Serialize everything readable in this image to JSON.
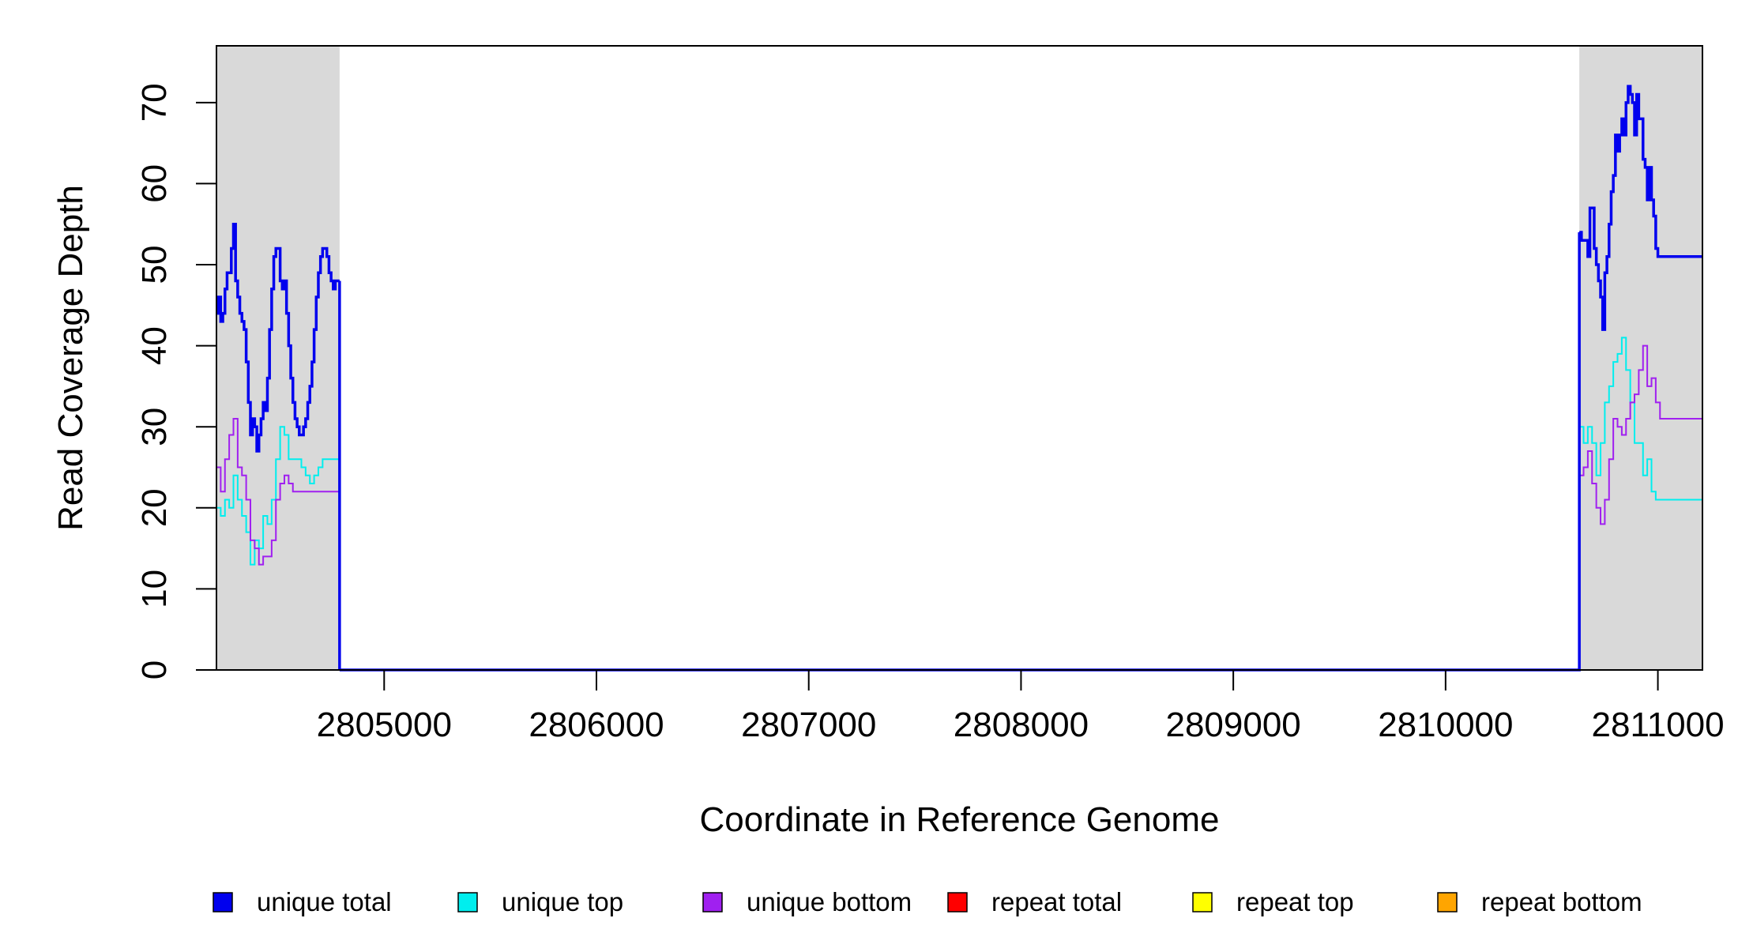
{
  "chart_data": {
    "type": "line",
    "title": "",
    "xlabel": "Coordinate in Reference Genome",
    "ylabel": "Read Coverage Depth",
    "xlim": [
      2804210,
      2811210
    ],
    "ylim": [
      0,
      77
    ],
    "x_ticks": [
      2805000,
      2806000,
      2807000,
      2808000,
      2809000,
      2810000,
      2811000
    ],
    "x_tick_labels": [
      "2805000",
      "2806000",
      "2807000",
      "2808000",
      "2809000",
      "2810000",
      "2811000"
    ],
    "y_ticks": [
      0,
      10,
      20,
      30,
      40,
      50,
      60,
      70
    ],
    "y_tick_labels": [
      "0",
      "10",
      "20",
      "30",
      "40",
      "50",
      "60",
      "70"
    ],
    "shaded_regions": [
      {
        "x_start": 2804210,
        "x_end": 2804790,
        "color": "#d9d9d9"
      },
      {
        "x_start": 2810630,
        "x_end": 2811210,
        "color": "#d9d9d9"
      }
    ],
    "legend_position": "bottom",
    "series": [
      {
        "name": "unique total",
        "color": "#0000ee",
        "segments": [
          {
            "x": [
              2804210,
              2804220,
              2804230,
              2804240,
              2804250,
              2804260,
              2804270,
              2804280,
              2804290,
              2804300,
              2804310,
              2804320,
              2804330,
              2804340,
              2804350,
              2804360,
              2804370,
              2804380,
              2804390,
              2804400,
              2804410,
              2804420,
              2804430,
              2804440,
              2804450,
              2804460,
              2804470,
              2804480,
              2804490,
              2804500,
              2804510,
              2804520,
              2804530,
              2804540,
              2804550,
              2804560,
              2804570,
              2804580,
              2804590,
              2804600,
              2804610,
              2804620,
              2804630,
              2804640,
              2804650,
              2804660,
              2804670,
              2804680,
              2804690,
              2804700,
              2804710,
              2804720,
              2804730,
              2804740,
              2804750,
              2804760,
              2804770,
              2804780,
              2804790
            ],
            "y": [
              44,
              46,
              43,
              44,
              47,
              49,
              49,
              52,
              55,
              48,
              46,
              44,
              43,
              42,
              38,
              33,
              29,
              31,
              30,
              27,
              29,
              31,
              33,
              32,
              36,
              42,
              47,
              51,
              52,
              52,
              48,
              47,
              48,
              44,
              40,
              36,
              33,
              31,
              30,
              29,
              29,
              30,
              31,
              33,
              35,
              38,
              42,
              46,
              49,
              51,
              52,
              52,
              51,
              49,
              48,
              47,
              48,
              48,
              48
            ]
          },
          {
            "x": [
              2810630,
              2810640,
              2810650,
              2810660,
              2810670,
              2810680,
              2810690,
              2810700,
              2810710,
              2810720,
              2810730,
              2810740,
              2810750,
              2810760,
              2810770,
              2810780,
              2810790,
              2810800,
              2810810,
              2810820,
              2810830,
              2810840,
              2810850,
              2810860,
              2810870,
              2810880,
              2810890,
              2810900,
              2810910,
              2810920,
              2810930,
              2810940,
              2810950,
              2810960,
              2810970,
              2810980,
              2810990,
              2811000,
              2811010,
              2811020,
              2811030,
              2811040,
              2811050,
              2811060,
              2811070,
              2811080,
              2811090,
              2811100,
              2811110,
              2811120,
              2811130,
              2811140,
              2811150,
              2811160,
              2811170,
              2811180,
              2811190,
              2811200,
              2811210
            ],
            "y": [
              54,
              53,
              53,
              53,
              51,
              57,
              57,
              52,
              50,
              48,
              46,
              42,
              49,
              51,
              55,
              59,
              61,
              66,
              64,
              66,
              68,
              66,
              70,
              72,
              71,
              70,
              66,
              71,
              68,
              68,
              63,
              62,
              58,
              62,
              58,
              56,
              52,
              51,
              51,
              51,
              51,
              51,
              51,
              51,
              51,
              51,
              51,
              51,
              51,
              51,
              51,
              51,
              51,
              51,
              51,
              51,
              51,
              51,
              51
            ]
          }
        ]
      },
      {
        "name": "unique top",
        "color": "#00eeee",
        "segments": [
          {
            "x": [
              2804210,
              2804230,
              2804250,
              2804270,
              2804290,
              2804310,
              2804330,
              2804350,
              2804370,
              2804390,
              2804410,
              2804430,
              2804450,
              2804470,
              2804490,
              2804510,
              2804530,
              2804550,
              2804570,
              2804590,
              2804610,
              2804630,
              2804650,
              2804670,
              2804690,
              2804710,
              2804730,
              2804750,
              2804770,
              2804790
            ],
            "y": [
              20,
              19,
              21,
              20,
              24,
              21,
              19,
              17,
              13,
              16,
              15,
              19,
              18,
              21,
              26,
              30,
              29,
              26,
              26,
              26,
              25,
              24,
              23,
              24,
              25,
              26,
              26,
              26,
              26,
              26
            ]
          },
          {
            "x": [
              2810630,
              2810650,
              2810670,
              2810690,
              2810710,
              2810730,
              2810750,
              2810770,
              2810790,
              2810810,
              2810830,
              2810850,
              2810870,
              2810890,
              2810910,
              2810930,
              2810950,
              2810970,
              2810990,
              2811010,
              2811030,
              2811050,
              2811070,
              2811090,
              2811110,
              2811130,
              2811150,
              2811170,
              2811190,
              2811210
            ],
            "y": [
              30,
              28,
              30,
              28,
              24,
              28,
              33,
              35,
              38,
              39,
              41,
              37,
              33,
              28,
              28,
              24,
              26,
              22,
              21,
              21,
              21,
              21,
              21,
              21,
              21,
              21,
              21,
              21,
              21,
              21
            ]
          }
        ]
      },
      {
        "name": "unique bottom",
        "color": "#a020f0",
        "segments": [
          {
            "x": [
              2804210,
              2804230,
              2804250,
              2804270,
              2804290,
              2804310,
              2804330,
              2804350,
              2804370,
              2804390,
              2804410,
              2804430,
              2804450,
              2804470,
              2804490,
              2804510,
              2804530,
              2804550,
              2804570,
              2804590,
              2804610,
              2804630,
              2804650,
              2804670,
              2804690,
              2804710,
              2804730,
              2804750,
              2804770,
              2804790
            ],
            "y": [
              25,
              22,
              26,
              29,
              31,
              25,
              24,
              21,
              16,
              15,
              13,
              14,
              14,
              16,
              21,
              23,
              24,
              23,
              22,
              22,
              22,
              22,
              22,
              22,
              22,
              22,
              22,
              22,
              22,
              22
            ]
          },
          {
            "x": [
              2810630,
              2810650,
              2810670,
              2810690,
              2810710,
              2810730,
              2810750,
              2810770,
              2810790,
              2810810,
              2810830,
              2810850,
              2810870,
              2810890,
              2810910,
              2810930,
              2810950,
              2810970,
              2810990,
              2811010,
              2811030,
              2811050,
              2811070,
              2811090,
              2811110,
              2811130,
              2811150,
              2811170,
              2811190,
              2811210
            ],
            "y": [
              24,
              25,
              27,
              23,
              20,
              18,
              21,
              26,
              31,
              30,
              29,
              31,
              33,
              34,
              37,
              40,
              35,
              36,
              33,
              31,
              31,
              31,
              31,
              31,
              31,
              31,
              31,
              31,
              31,
              31
            ]
          }
        ]
      },
      {
        "name": "repeat total",
        "color": "#ff0000",
        "segments": [
          {
            "x": [
              2804210,
              2811210
            ],
            "y": [
              0,
              0
            ]
          }
        ]
      },
      {
        "name": "repeat top",
        "color": "#ffff00",
        "segments": [
          {
            "x": [
              2804210,
              2811210
            ],
            "y": [
              0,
              0
            ]
          }
        ]
      },
      {
        "name": "repeat bottom",
        "color": "#ffa500",
        "segments": [
          {
            "x": [
              2804210,
              2811210
            ],
            "y": [
              0,
              0
            ]
          }
        ]
      }
    ]
  }
}
